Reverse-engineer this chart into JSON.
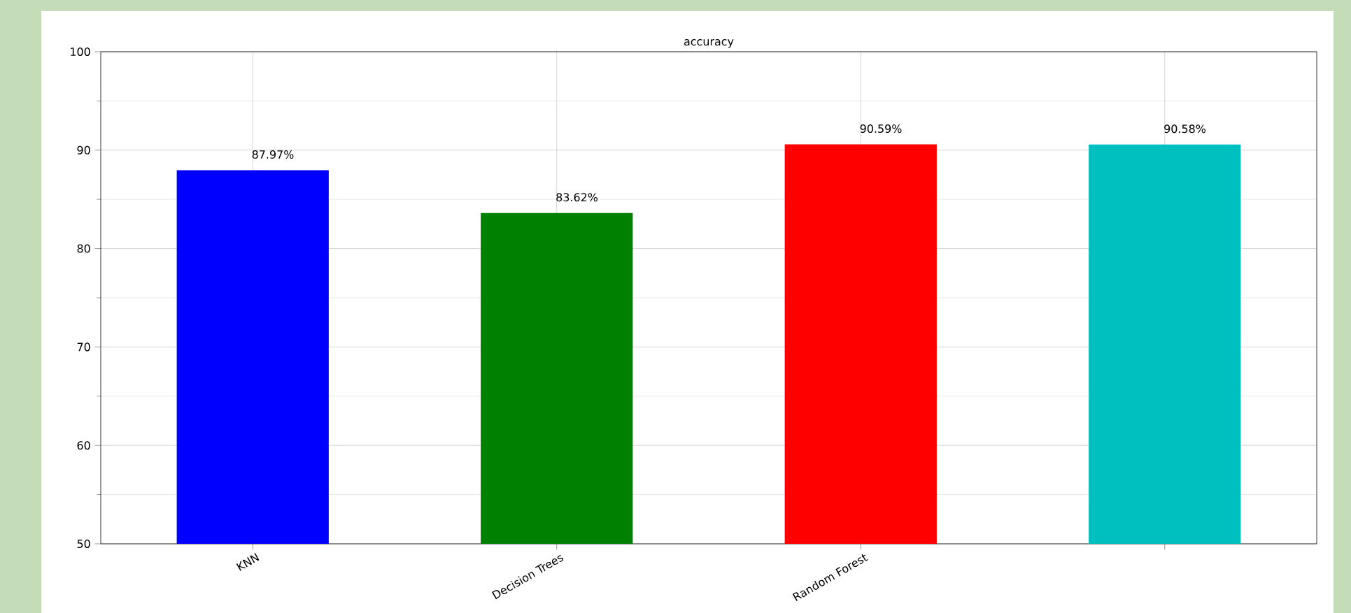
{
  "chart_data": {
    "type": "bar",
    "title": "accuracy",
    "categories": [
      "KNN",
      "Decision Trees",
      "Random Forest",
      null
    ],
    "values": [
      87.97,
      83.62,
      90.59,
      90.58
    ],
    "colors": [
      "#0000ff",
      "#008000",
      "#ff0000",
      "#00bfbf"
    ],
    "value_labels": [
      "87.97%",
      "83.62%",
      "90.59%",
      "90.58%"
    ],
    "ylim": [
      50,
      100
    ],
    "yticks": [
      50,
      60,
      70,
      80,
      90,
      100
    ],
    "grid": true
  }
}
